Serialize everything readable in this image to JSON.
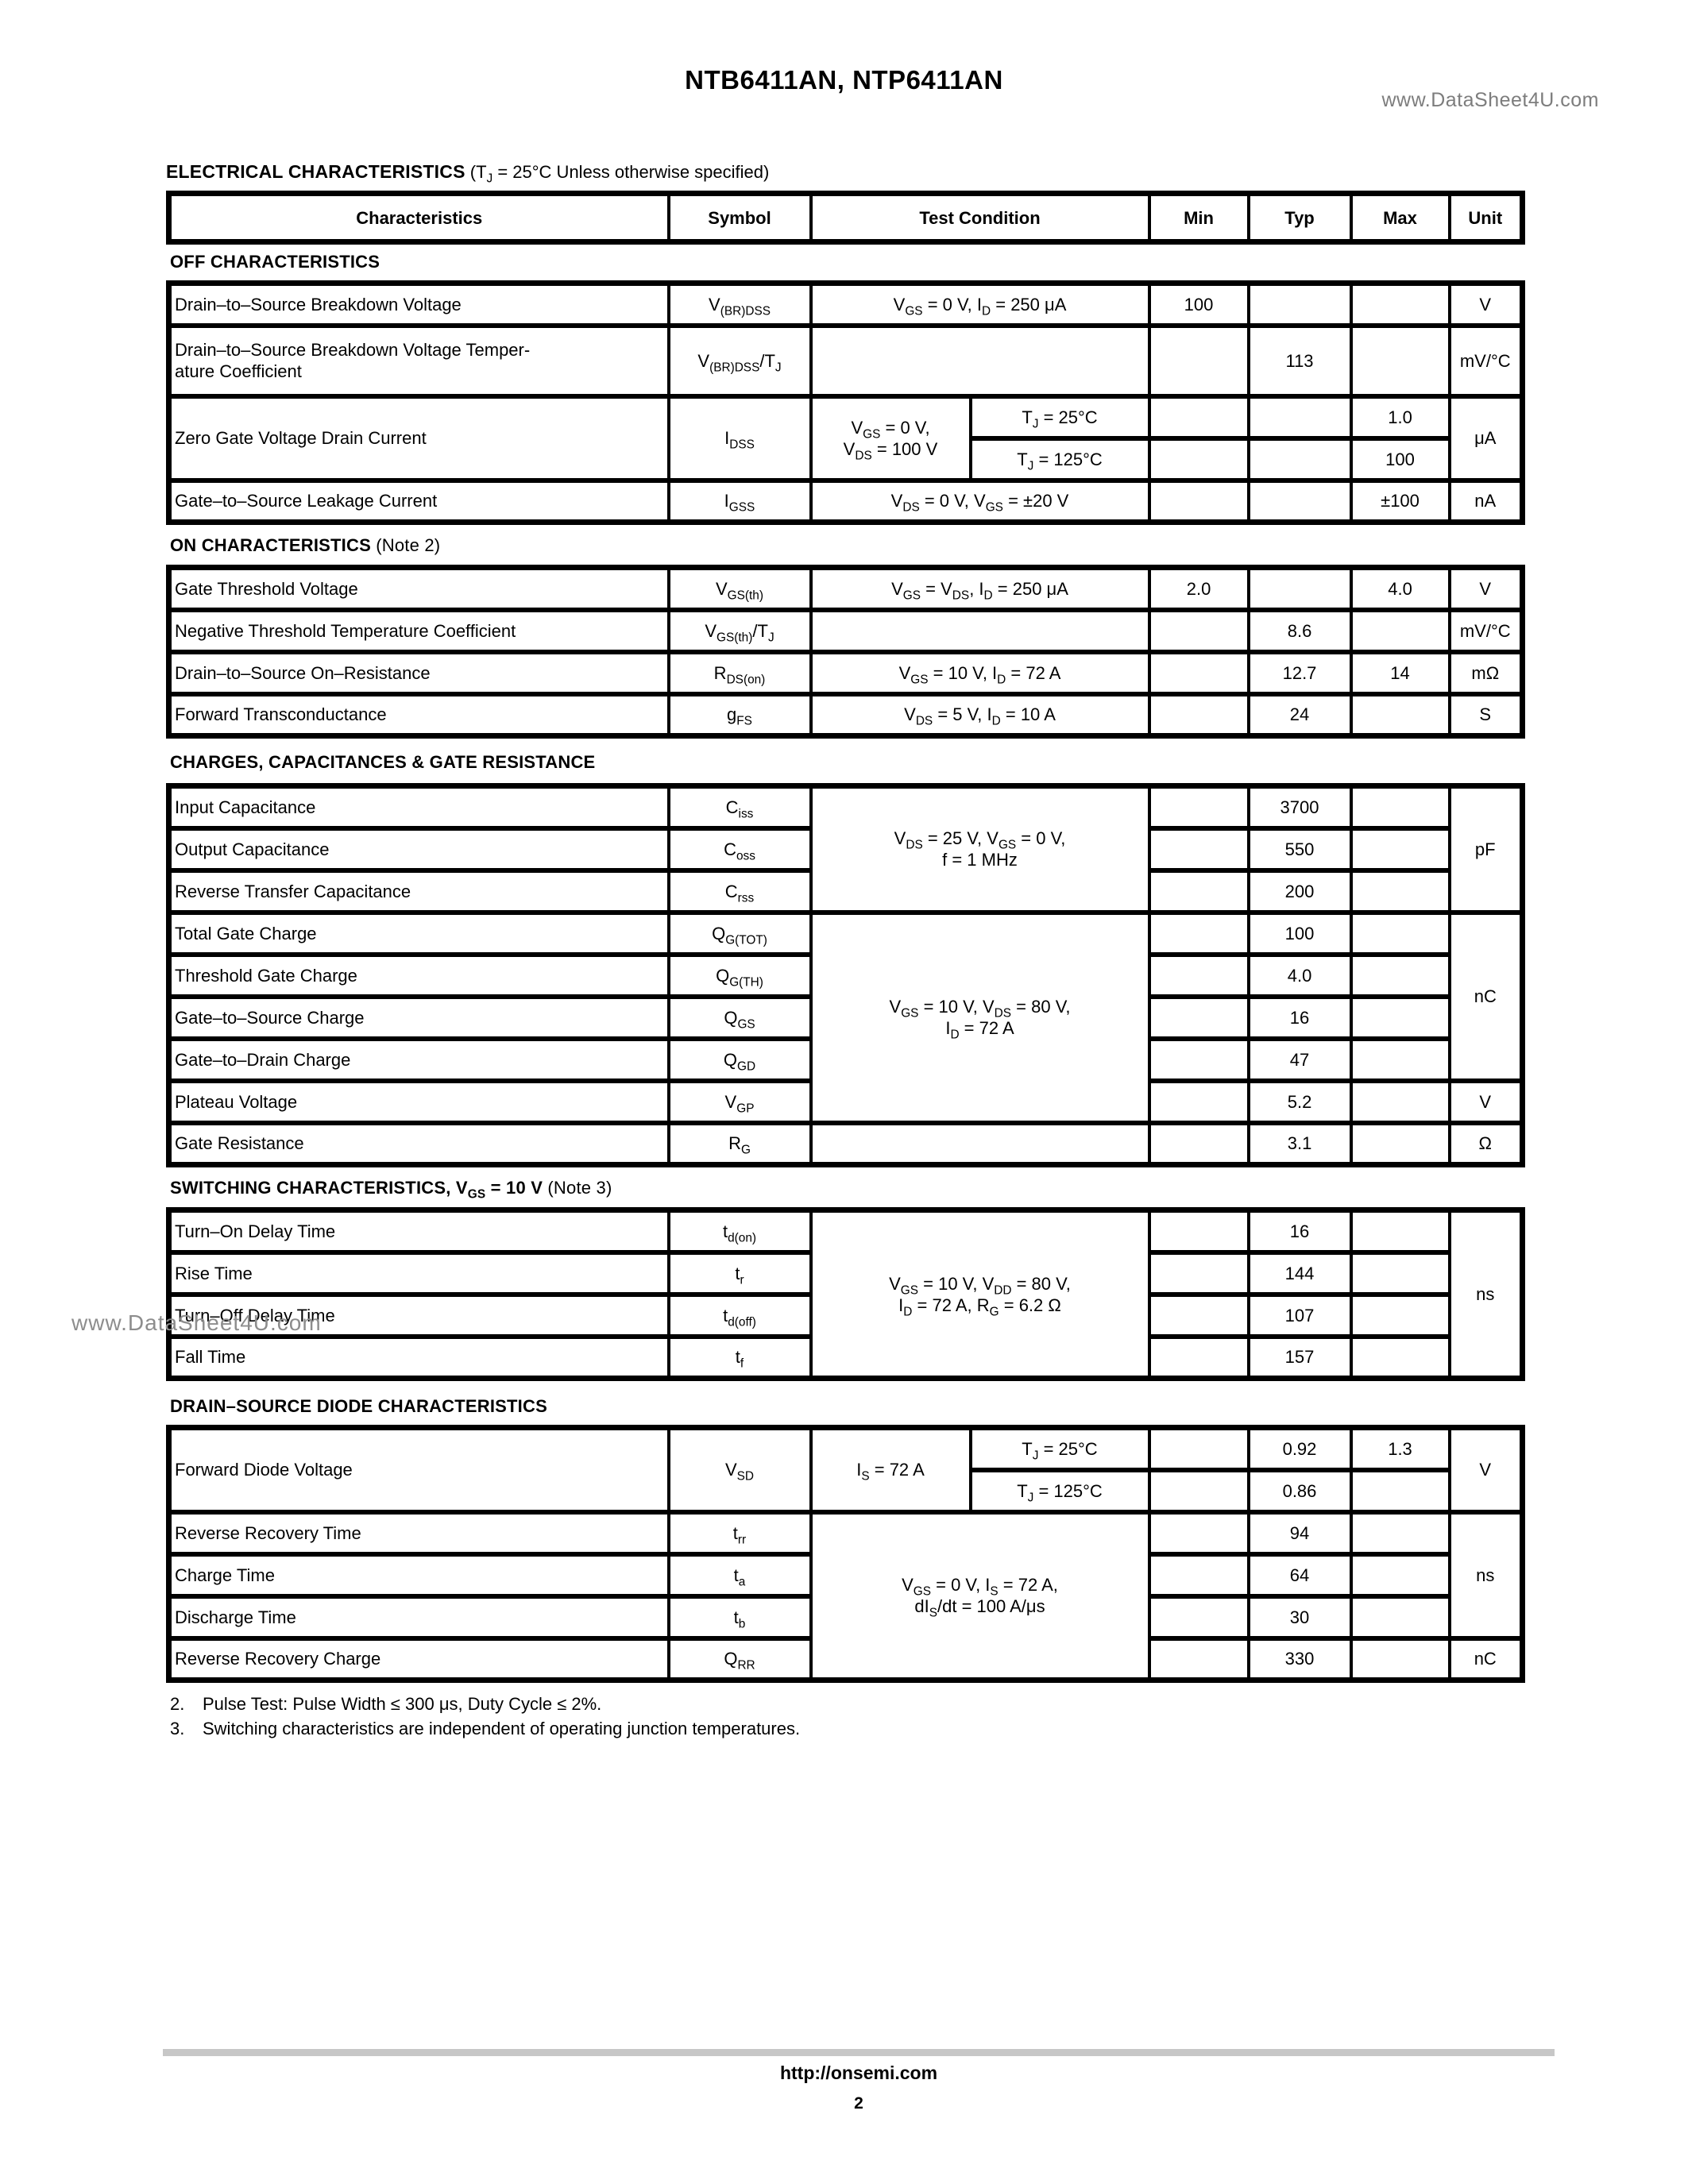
{
  "page": {
    "title": "NTB6411AN, NTP6411AN",
    "watermark": "www.DataSheet4U.com",
    "footer_link": "http://onsemi.com",
    "page_number": "2"
  },
  "heading": {
    "bold": "ELECTRICAL CHARACTERISTICS",
    "condition": " (T_{J} = 25°C Unless otherwise specified)"
  },
  "columns": [
    "Characteristics",
    "Symbol",
    "Test Condition",
    "Min",
    "Typ",
    "Max",
    "Unit"
  ],
  "sections": [
    {
      "label": "OFF CHARACTERISTICS",
      "rows": [
        {
          "char": "Drain–to–Source Breakdown Voltage",
          "sym": "V_{(BR)DSS}",
          "cond": "V_{GS} = 0 V, I_{D} = 250 μA",
          "min": "100",
          "unit": "V"
        },
        {
          "char": "Drain–to–Source Breakdown Voltage Temper-\nature Coefficient",
          "sym": "V_{(BR)DSS}/T_{J}",
          "typ": "113",
          "unit": "mV/°C"
        },
        {
          "char": "Zero Gate Voltage Drain Current",
          "sym": "I_{DSS}",
          "condL": "V_{GS} = 0 V,\nV_{DS} = 100 V",
          "cond2": "T_{J} = 25°C",
          "max": "1.0",
          "unit": "μA"
        },
        {
          "cond2": "T_{J} = 125°C",
          "max": "100"
        },
        {
          "char": "Gate–to–Source Leakage Current",
          "sym": "I_{GSS}",
          "cond": "V_{DS} = 0 V, V_{GS} = ±20 V",
          "max": "±100",
          "unit": "nA"
        }
      ]
    },
    {
      "label": "ON CHARACTERISTICS",
      "note": " (Note 2)",
      "rows": [
        {
          "char": "Gate Threshold Voltage",
          "sym": "V_{GS(th)}",
          "cond": "V_{GS} = V_{DS}, I_{D} = 250 μA",
          "min": "2.0",
          "max": "4.0",
          "unit": "V"
        },
        {
          "char": "Negative Threshold Temperature Coefficient",
          "sym": "V_{GS(th)}/T_{J}",
          "typ": "8.6",
          "unit": "mV/°C"
        },
        {
          "char": "Drain–to–Source On–Resistance",
          "sym": "R_{DS(on)}",
          "cond": "V_{GS} = 10 V, I_{D} = 72 A",
          "typ": "12.7",
          "max": "14",
          "unit": "mΩ"
        },
        {
          "char": "Forward Transconductance",
          "sym": "g_{FS}",
          "cond": "V_{DS} = 5 V, I_{D} = 10 A",
          "typ": "24",
          "unit": "S"
        }
      ]
    },
    {
      "label": "CHARGES, CAPACITANCES & GATE RESISTANCE",
      "rows": [
        {
          "char": "Input Capacitance",
          "sym": "C_{iss}",
          "cond": "V_{DS} = 25 V, V_{GS} = 0 V,\nf = 1 MHz",
          "typ": "3700",
          "unit": "pF"
        },
        {
          "char": "Output Capacitance",
          "sym": "C_{oss}",
          "typ": "550"
        },
        {
          "char": "Reverse Transfer Capacitance",
          "sym": "C_{rss}",
          "typ": "200"
        },
        {
          "char": "Total Gate Charge",
          "sym": "Q_{G(TOT)}",
          "cond": "V_{GS} = 10 V, V_{DS} = 80 V,\nI_{D} = 72 A",
          "typ": "100",
          "unit": "nC"
        },
        {
          "char": "Threshold Gate Charge",
          "sym": "Q_{G(TH)}",
          "typ": "4.0"
        },
        {
          "char": "Gate–to–Source Charge",
          "sym": "Q_{GS}",
          "typ": "16"
        },
        {
          "char": "Gate–to–Drain Charge",
          "sym": "Q_{GD}",
          "typ": "47"
        },
        {
          "char": "Plateau Voltage",
          "sym": "V_{GP}",
          "typ": "5.2",
          "unit": "V"
        },
        {
          "char": "Gate Resistance",
          "sym": "R_{G}",
          "typ": "3.1",
          "unit": "Ω"
        }
      ]
    },
    {
      "label": "SWITCHING CHARACTERISTICS, V_{GS} = 10 V",
      "note": " (Note 3)",
      "rows": [
        {
          "char": "Turn–On Delay Time",
          "sym": "t_{d(on)}",
          "cond": "V_{GS} = 10 V, V_{DD} = 80 V,\nI_{D} = 72 A, R_{G} = 6.2 Ω",
          "typ": "16",
          "unit": "ns"
        },
        {
          "char": "Rise Time",
          "sym": "t_{r}",
          "typ": "144"
        },
        {
          "char": "Turn–Off Delay Time",
          "sym": "t_{d(off)}",
          "typ": "107"
        },
        {
          "char": "Fall Time",
          "sym": "t_{f}",
          "typ": "157"
        }
      ]
    },
    {
      "label": "DRAIN–SOURCE DIODE CHARACTERISTICS",
      "rows": [
        {
          "char": "Forward Diode Voltage",
          "sym": "V_{SD}",
          "condL": "I_{S} = 72 A",
          "cond2": "T_{J} = 25°C",
          "typ": "0.92",
          "max": "1.3",
          "unit": "V"
        },
        {
          "cond2": "T_{J} = 125°C",
          "typ": "0.86"
        },
        {
          "char": "Reverse Recovery Time",
          "sym": "t_{rr}",
          "cond": "V_{GS} = 0 V, I_{S} = 72 A,\ndI_{S}/dt = 100 A/μs",
          "typ": "94",
          "unit": "ns"
        },
        {
          "char": "Charge Time",
          "sym": "t_{a}",
          "typ": "64"
        },
        {
          "char": "Discharge Time",
          "sym": "t_{b}",
          "typ": "30"
        },
        {
          "char": "Reverse Recovery Charge",
          "sym": "Q_{RR}",
          "typ": "330",
          "unit": "nC"
        }
      ]
    }
  ],
  "notes": [
    {
      "num": "2.",
      "text": "Pulse Test: Pulse Width ≤ 300 μs, Duty Cycle ≤ 2%."
    },
    {
      "num": "3.",
      "text": "Switching characteristics are independent of operating junction temperatures."
    }
  ]
}
